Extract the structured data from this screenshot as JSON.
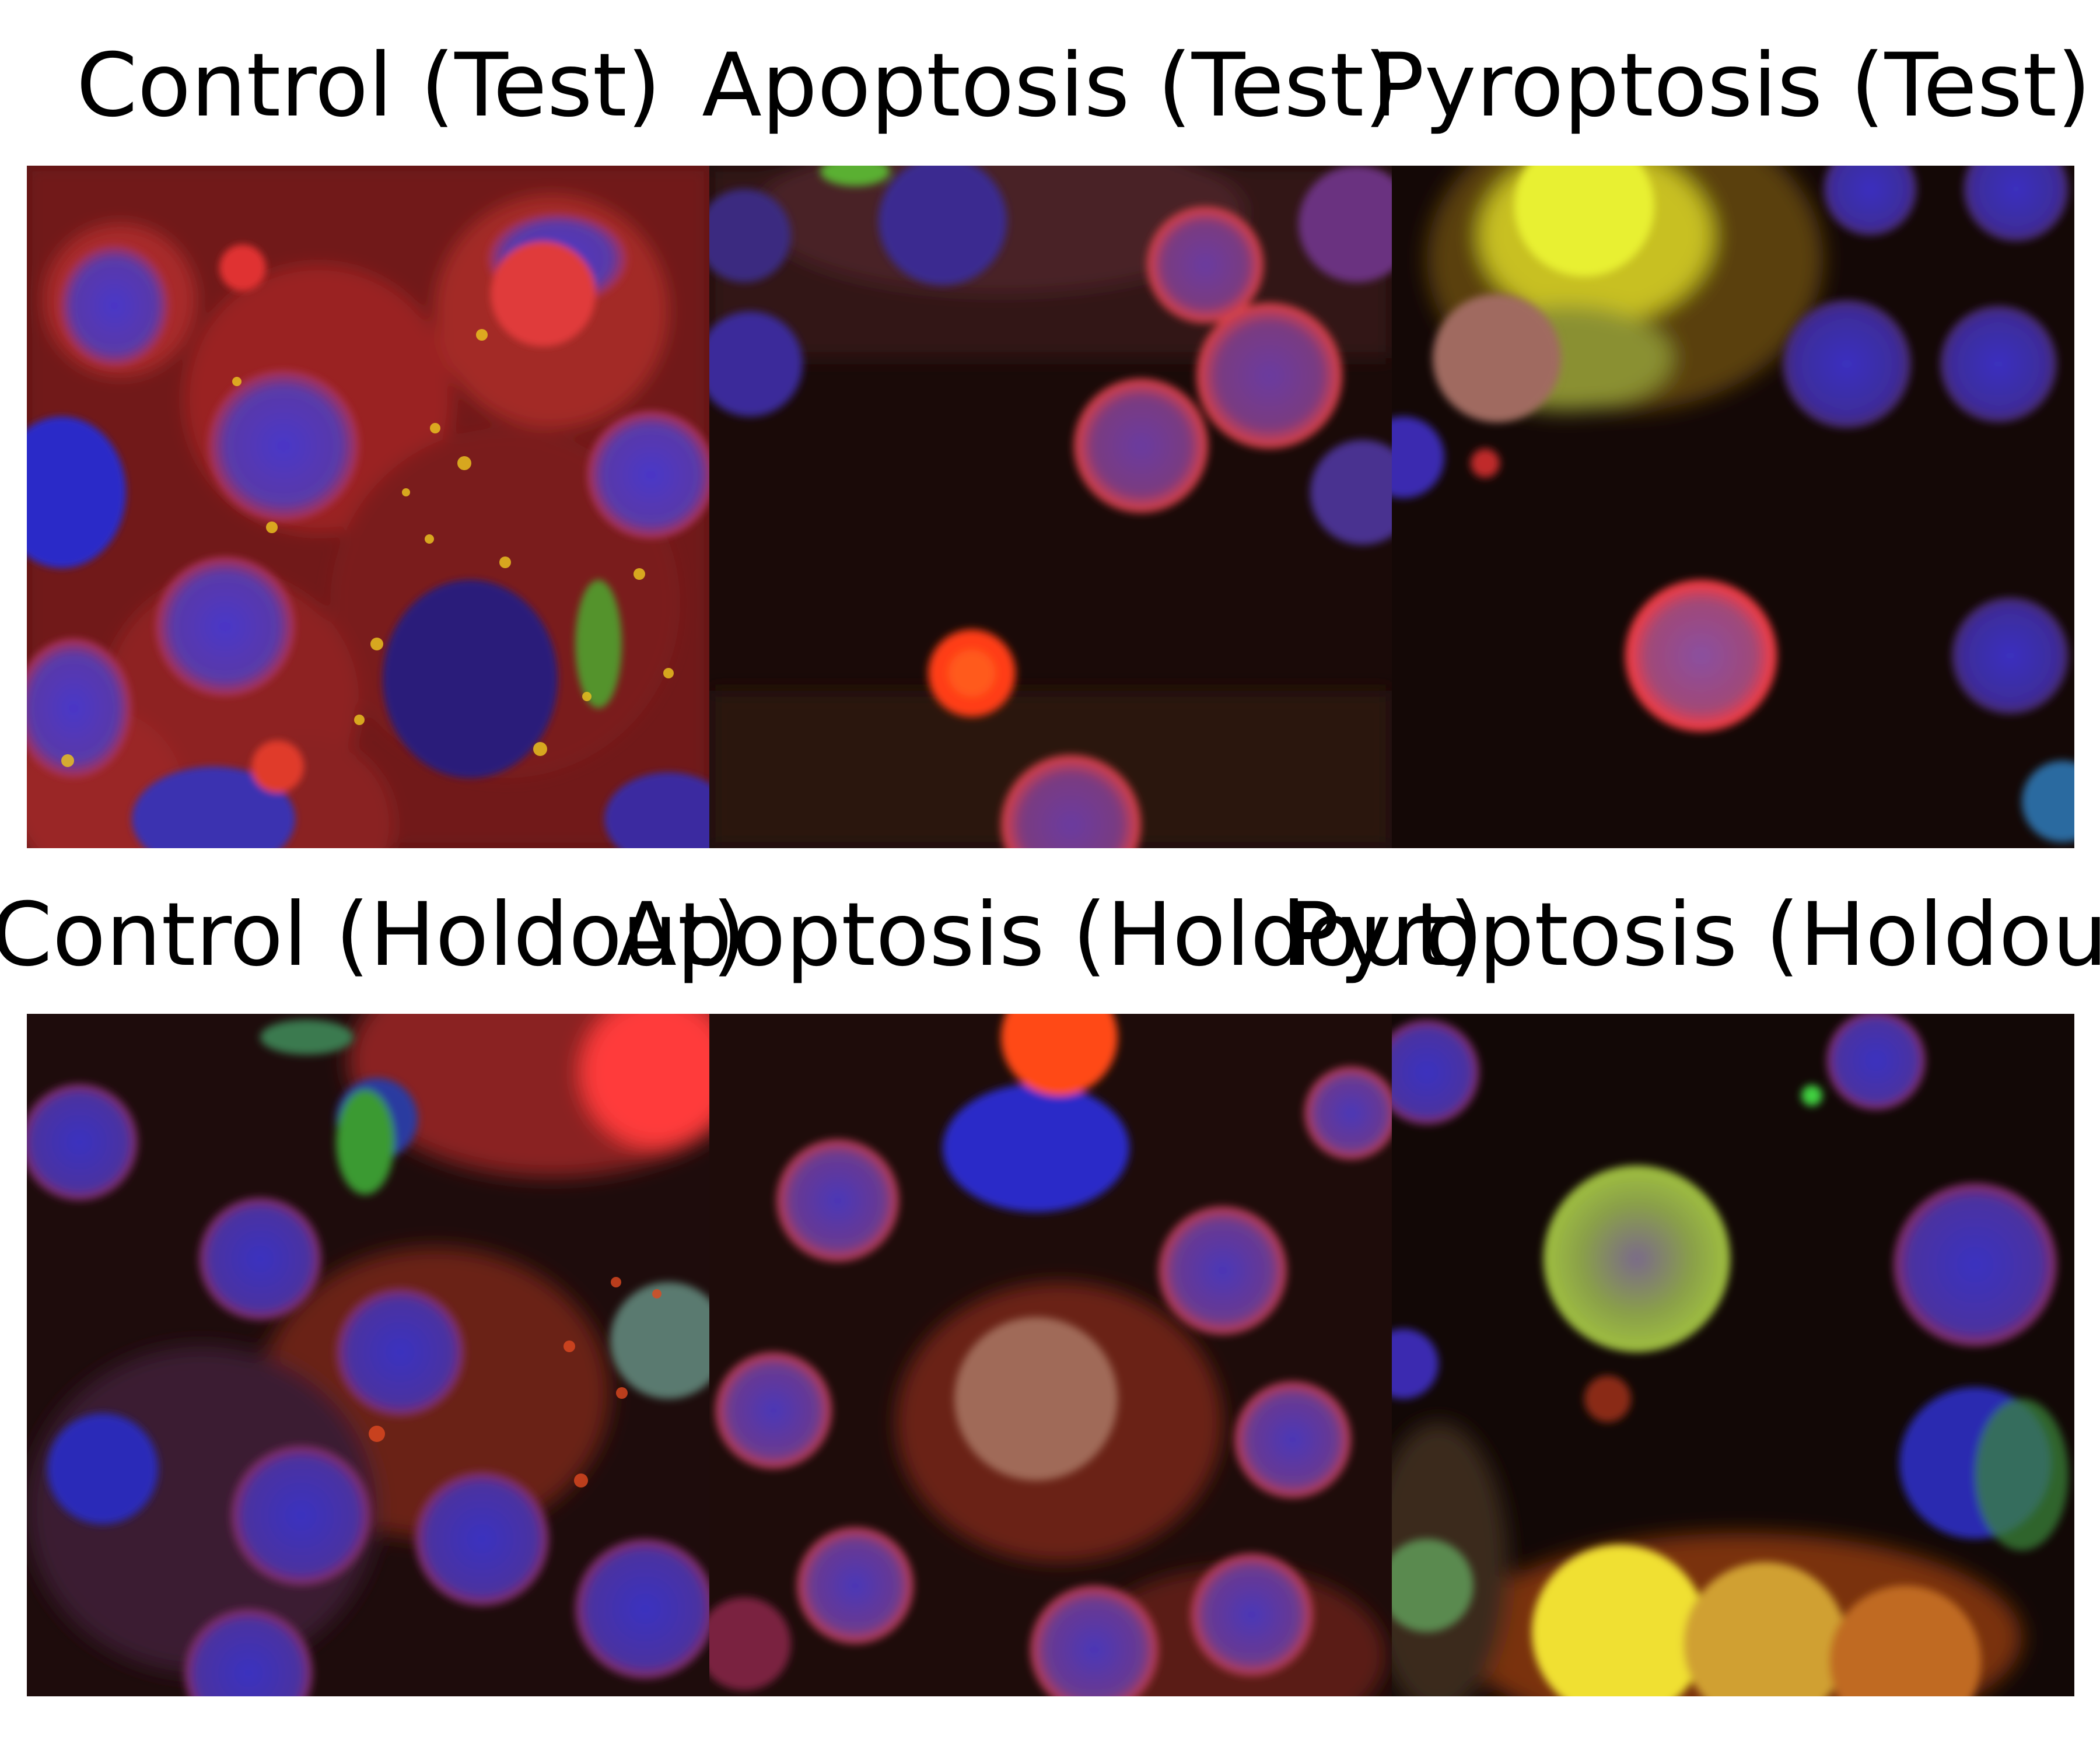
{
  "panels": [
    {
      "title": "Control (Test)"
    },
    {
      "title": "Apoptosis (Test)"
    },
    {
      "title": "Pyroptosis (Test)"
    },
    {
      "title": "Control (Holdout)"
    },
    {
      "title": "Apoptosis (Holdout)"
    },
    {
      "title": "Pyroptosis (Holdout)"
    }
  ],
  "colors": {
    "nucleus": "#3a2ab8",
    "membrane": "#e03030",
    "green_marker": "#5cc93a",
    "yellow": "#e8e020",
    "background_dark": "#1a0a08",
    "background_red": "#6a1a1a"
  }
}
